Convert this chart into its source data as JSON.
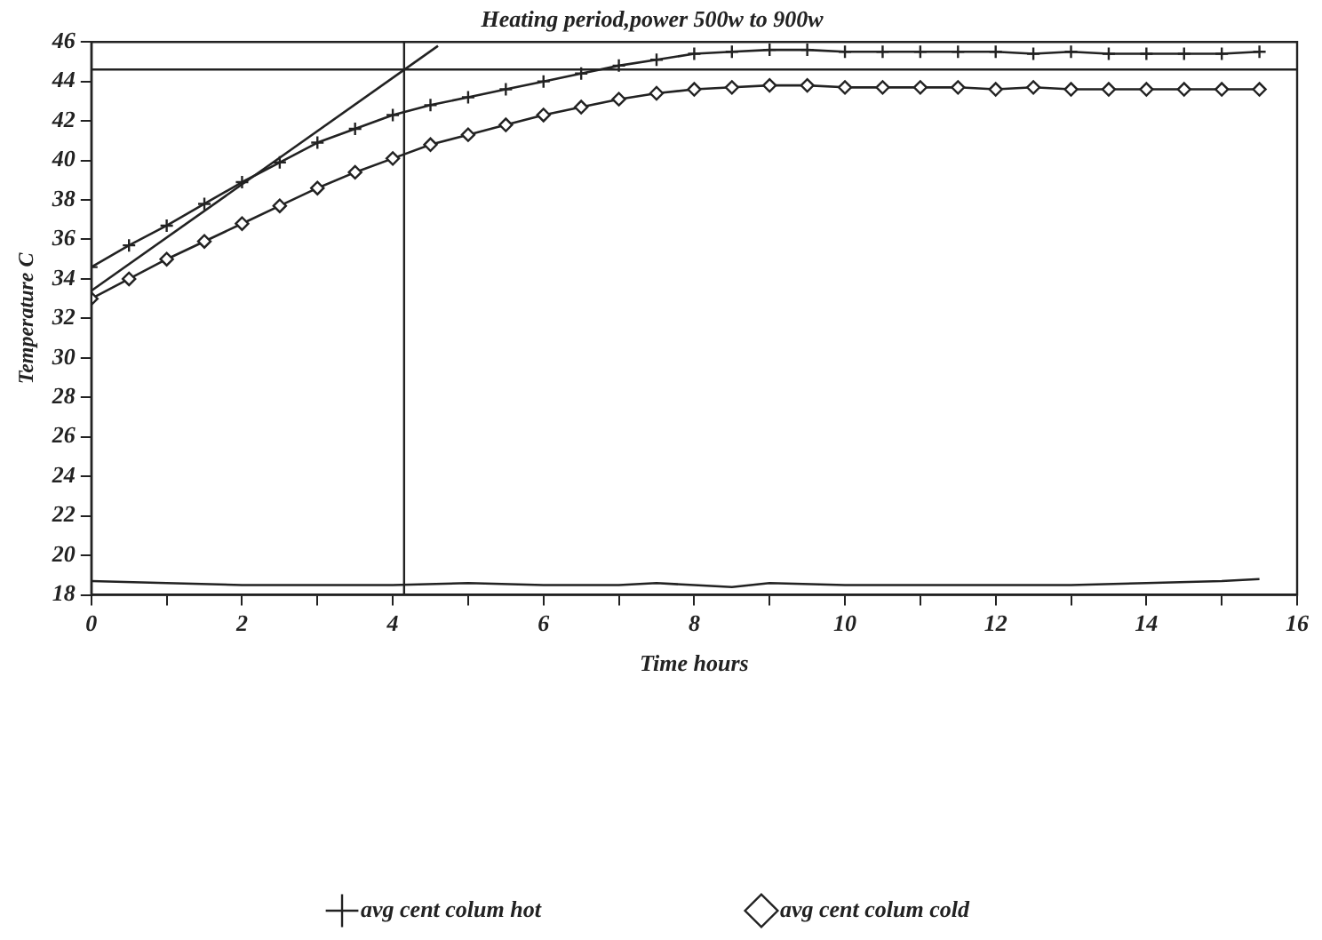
{
  "chart_data": {
    "type": "line",
    "title": "Heating period,power 500w to 900w",
    "xlabel": "Time hours",
    "ylabel": "Temperature C",
    "xlim": [
      0,
      16
    ],
    "xticks": [
      0,
      {
        "value": 1,
        "label": null
      },
      2,
      {
        "value": 3,
        "label": null
      },
      4,
      {
        "value": 5,
        "label": null
      },
      6,
      {
        "value": 7,
        "label": null
      },
      8,
      {
        "value": 9,
        "label": null
      },
      10,
      {
        "value": 11,
        "label": null
      },
      12,
      {
        "value": 13,
        "label": null
      },
      14,
      {
        "value": 15,
        "label": null
      },
      16
    ],
    "ylim": [
      18,
      46
    ],
    "yticks": [
      18,
      20,
      22,
      24,
      26,
      28,
      30,
      32,
      34,
      36,
      38,
      40,
      42,
      44,
      46
    ],
    "grid": false,
    "legend": "bottom",
    "line_style": "solid",
    "series": [
      {
        "name": "avg cent colum hot",
        "color": "#222222",
        "marker": "cross",
        "x": [
          0,
          0.5,
          1,
          1.5,
          2,
          2.5,
          3,
          3.5,
          4,
          4.5,
          5,
          5.5,
          6,
          6.5,
          7,
          7.5,
          8,
          8.5,
          9,
          9.5,
          10,
          10.5,
          11,
          11.5,
          12,
          12.5,
          13,
          13.5,
          14,
          14.5,
          15,
          15.5
        ],
        "values": [
          34.6,
          35.7,
          36.7,
          37.8,
          38.9,
          39.9,
          40.9,
          41.6,
          42.3,
          42.8,
          43.2,
          43.6,
          44.0,
          44.4,
          44.8,
          45.1,
          45.4,
          45.5,
          45.6,
          45.6,
          45.5,
          45.5,
          45.5,
          45.5,
          45.5,
          45.4,
          45.5,
          45.4,
          45.4,
          45.4,
          45.4,
          45.5
        ]
      },
      {
        "name": "avg cent colum cold",
        "color": "#222222",
        "marker": "diamond",
        "x": [
          0,
          0.5,
          1,
          1.5,
          2,
          2.5,
          3,
          3.5,
          4,
          4.5,
          5,
          5.5,
          6,
          6.5,
          7,
          7.5,
          8,
          8.5,
          9,
          9.5,
          10,
          10.5,
          11,
          11.5,
          12,
          12.5,
          13,
          13.5,
          14,
          14.5,
          15,
          15.5
        ],
        "values": [
          33.0,
          34.0,
          35.0,
          35.9,
          36.8,
          37.7,
          38.6,
          39.4,
          40.1,
          40.8,
          41.3,
          41.8,
          42.3,
          42.7,
          43.1,
          43.4,
          43.6,
          43.7,
          43.8,
          43.8,
          43.7,
          43.7,
          43.7,
          43.7,
          43.6,
          43.7,
          43.6,
          43.6,
          43.6,
          43.6,
          43.6,
          43.6
        ]
      },
      {
        "color": "#222222",
        "marker": "none",
        "x": [
          0,
          1,
          2,
          3,
          4,
          5,
          6,
          7,
          7.5,
          8,
          8.5,
          9,
          10,
          11,
          12,
          13,
          14,
          15,
          15.5
        ],
        "values": [
          18.7,
          18.6,
          18.5,
          18.5,
          18.5,
          18.6,
          18.5,
          18.5,
          18.6,
          18.5,
          18.4,
          18.6,
          18.5,
          18.5,
          18.5,
          18.5,
          18.6,
          18.7,
          18.8
        ]
      },
      {
        "color": "#222222",
        "marker": "none",
        "x": [
          0,
          4.6
        ],
        "values": [
          33.4,
          45.8
        ]
      }
    ],
    "ref_lines": [
      {
        "axis": "y",
        "value": 44.6,
        "color": "#222222"
      },
      {
        "axis": "x",
        "value": 4.15,
        "color": "#222222"
      }
    ]
  }
}
